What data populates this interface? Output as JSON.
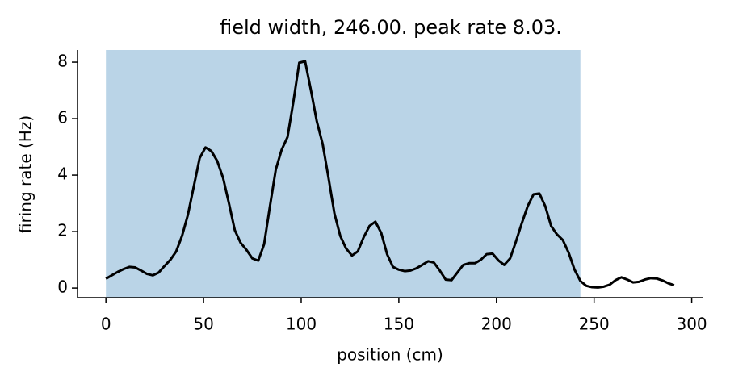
{
  "chart_data": {
    "type": "line",
    "title": "field width, 246.00. peak rate 8.03.",
    "x_label": "position (cm)",
    "y_label": "firing rate (Hz)",
    "x": [
      0,
      3,
      6,
      9,
      12,
      15,
      18,
      21,
      24,
      27,
      30,
      33,
      36,
      39,
      42,
      45,
      48,
      51,
      54,
      57,
      60,
      63,
      66,
      69,
      72,
      75,
      78,
      81,
      84,
      87,
      90,
      93,
      96,
      99,
      102,
      105,
      108,
      111,
      114,
      117,
      120,
      123,
      126,
      129,
      132,
      135,
      138,
      141,
      144,
      147,
      150,
      153,
      156,
      159,
      162,
      165,
      168,
      171,
      174,
      177,
      180,
      183,
      186,
      189,
      192,
      195,
      198,
      201,
      204,
      207,
      210,
      213,
      216,
      219,
      222,
      225,
      228,
      231,
      234,
      237,
      240,
      243,
      246,
      249,
      252,
      255,
      258,
      261,
      264,
      267,
      270,
      273,
      276,
      279,
      282,
      285,
      288,
      291
    ],
    "series": [
      {
        "color": "#000000",
        "values": [
          0.33,
          0.45,
          0.57,
          0.67,
          0.75,
          0.73,
          0.62,
          0.5,
          0.45,
          0.55,
          0.78,
          1.0,
          1.3,
          1.85,
          2.6,
          3.6,
          4.6,
          4.98,
          4.85,
          4.5,
          3.9,
          3.0,
          2.05,
          1.6,
          1.35,
          1.05,
          0.97,
          1.55,
          2.9,
          4.2,
          4.9,
          5.35,
          6.6,
          7.98,
          8.03,
          7.0,
          5.9,
          5.1,
          3.9,
          2.65,
          1.85,
          1.4,
          1.15,
          1.3,
          1.8,
          2.2,
          2.35,
          1.95,
          1.2,
          0.75,
          0.65,
          0.6,
          0.62,
          0.7,
          0.82,
          0.95,
          0.9,
          0.62,
          0.3,
          0.28,
          0.55,
          0.82,
          0.88,
          0.88,
          1.0,
          1.2,
          1.22,
          0.98,
          0.82,
          1.05,
          1.65,
          2.3,
          2.9,
          3.32,
          3.35,
          2.9,
          2.2,
          1.9,
          1.7,
          1.25,
          0.65,
          0.25,
          0.08,
          0.03,
          0.02,
          0.05,
          0.12,
          0.28,
          0.38,
          0.3,
          0.2,
          0.22,
          0.3,
          0.35,
          0.34,
          0.27,
          0.17,
          0.1
        ]
      }
    ],
    "span": {
      "x": [
        0,
        243
      ],
      "color": "#bad4e7"
    },
    "xlim": [
      -14.55,
      305.55
    ],
    "xticks": [
      0,
      50,
      100,
      150,
      200,
      250,
      300
    ],
    "ylim": [
      -0.34,
      8.43
    ],
    "yticks": [
      0,
      2,
      4,
      6,
      8
    ]
  }
}
